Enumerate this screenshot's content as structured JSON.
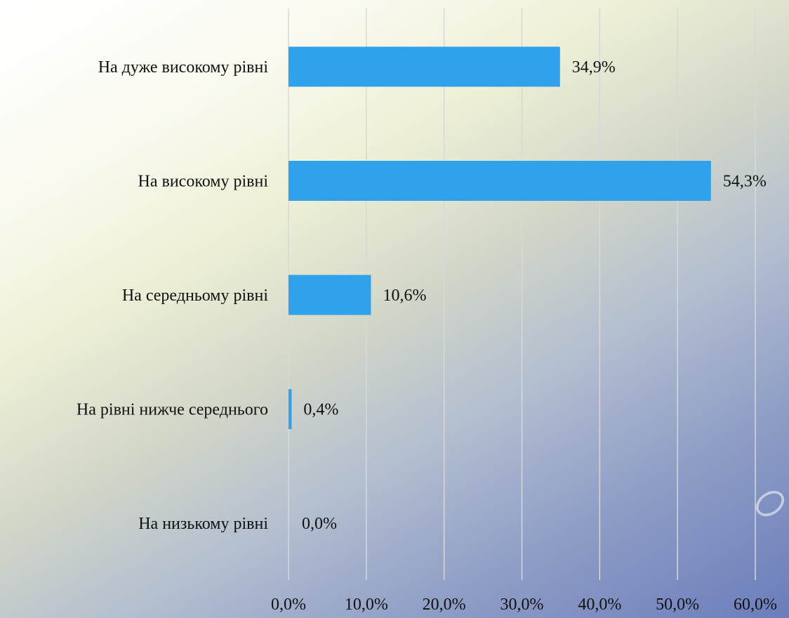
{
  "chart_data": {
    "type": "bar",
    "orientation": "horizontal",
    "categories": [
      "На дуже високому рівні",
      "На високому рівні",
      "На середньому рівні",
      "На рівні нижче середнього",
      "На низькому рівні"
    ],
    "values": [
      34.9,
      54.3,
      10.6,
      0.4,
      0.0
    ],
    "value_labels": [
      "34,9%",
      "54,3%",
      "10,6%",
      "0,4%",
      "0,0%"
    ],
    "xlim": [
      0,
      60
    ],
    "x_ticks": [
      0,
      10,
      20,
      30,
      40,
      50,
      60
    ],
    "x_tick_labels": [
      "0,0%",
      "10,0%",
      "20,0%",
      "30,0%",
      "40,0%",
      "50,0%",
      "60,0%"
    ],
    "title": "",
    "xlabel": "",
    "ylabel": "",
    "grid": "vertical",
    "legend": "none",
    "bar_color": "#30a2ec"
  },
  "colors": {
    "bar": "#30a2ec",
    "gridline": "#d8d8d8",
    "text": "#111111"
  },
  "decoration": {
    "icon": "ring-icon"
  }
}
